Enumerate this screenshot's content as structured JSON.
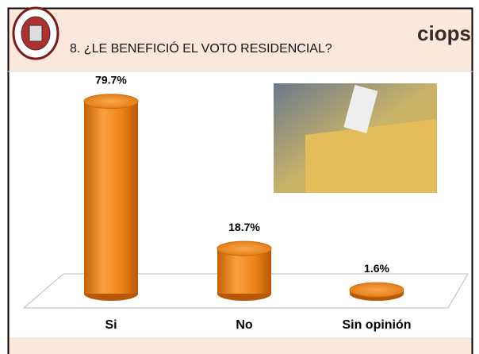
{
  "brand": "ciops",
  "chart_data": {
    "type": "bar",
    "title": "8. ¿LE BENEFICIÓ EL VOTO RESIDENCIAL?",
    "categories": [
      "Si",
      "No",
      "Sin opinión"
    ],
    "values": [
      79.7,
      18.7,
      1.6
    ],
    "value_labels": [
      "79.7%",
      "18.7%",
      "1.6%"
    ],
    "color": "#f08a1c"
  }
}
